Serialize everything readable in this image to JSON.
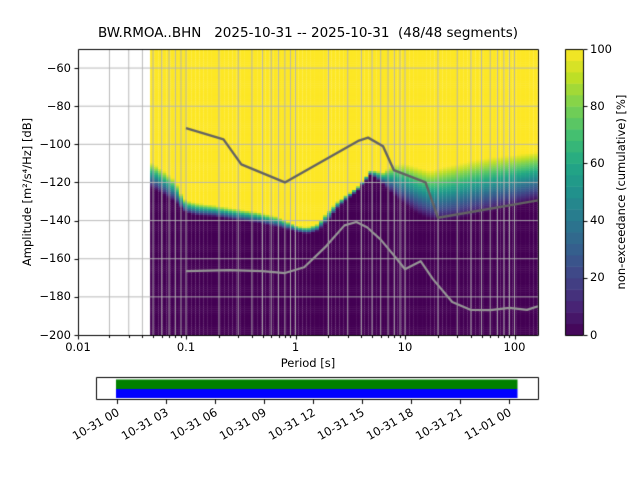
{
  "header": {
    "title": "BW.RMOA..BHN   2025-10-31 -- 2025-10-31  (48/48 segments)",
    "station_code": "BW.RMOA..BHN",
    "date_range": "2025-10-31 -- 2025-10-31",
    "segments": "48/48 segments"
  },
  "axes": {
    "xlabel": "Period [s]",
    "ylabel": "Amplitude [m²/s⁴/Hz] [dB]",
    "x_tick_labels": [
      "0.01",
      "0.1",
      "1",
      "10",
      "100"
    ],
    "x_tick_values": [
      0.01,
      0.1,
      1,
      10,
      100
    ],
    "y_tick_labels": [
      "−60",
      "−80",
      "−100",
      "−120",
      "−140",
      "−160",
      "−180",
      "−200"
    ],
    "y_tick_values": [
      -60,
      -80,
      -100,
      -120,
      -140,
      -160,
      -180,
      -200
    ]
  },
  "colorbar": {
    "label": "non-exceedance (cumulative) [%]",
    "tick_labels": [
      "0",
      "20",
      "40",
      "60",
      "80",
      "100"
    ],
    "tick_values": [
      0,
      20,
      40,
      60,
      80,
      100
    ],
    "steps": 25
  },
  "timeline": {
    "tick_labels": [
      "10-31 00",
      "10-31 03",
      "10-31 06",
      "10-31 09",
      "10-31 12",
      "10-31 15",
      "10-31 18",
      "10-31 21",
      "11-01 00"
    ],
    "coverage_top_color": "#008000",
    "coverage_bottom_color": "#0000ff"
  },
  "colors": {
    "grid": "#b2b2b2",
    "spine": "#000000",
    "high_noise_model_line": "#636363",
    "low_noise_model_line": "#969696",
    "no_data_background": "#ffffff",
    "viridis_stops": [
      "#440154",
      "#482475",
      "#414487",
      "#355f8d",
      "#2a788e",
      "#21918c",
      "#22a884",
      "#44bf70",
      "#7ad151",
      "#bddf26",
      "#fde725"
    ]
  },
  "chart_data": {
    "type": "heatmap",
    "subtype": "ppsd-cumulative",
    "title": "BW.RMOA..BHN   2025-10-31 -- 2025-10-31  (48/48 segments)",
    "xlabel": "Period [s]",
    "ylabel": "Amplitude [m²/s⁴/Hz] [dB]",
    "x_scale": "log",
    "x_range": [
      0.01,
      164
    ],
    "ylim": [
      -200,
      -50
    ],
    "colorbar_label": "non-exceedance (cumulative) [%]",
    "colorbar_range": [
      0,
      100
    ],
    "cmap": "viridis",
    "grid": true,
    "band": {
      "comment": "per period: PSD distribution span; max_db = level where cumulative reaches 100% (yellow above), min_db = level where it is 0% (dark below)",
      "periods_s": [
        0.047,
        0.055,
        0.065,
        0.08,
        0.088,
        0.1,
        0.13,
        0.18,
        0.3,
        0.45,
        0.69,
        1.05,
        1.28,
        1.6,
        1.95,
        2.4,
        3.0,
        3.7,
        4.9,
        6.3,
        8.0,
        10.0,
        13.0,
        17.0,
        22.0,
        30.0,
        45.0,
        70.0,
        100.0,
        140.0,
        164.0
      ],
      "max_db": [
        -109.0,
        -111.5,
        -114.5,
        -119.0,
        -125.0,
        -129.5,
        -131.0,
        -132.0,
        -134.0,
        -135.5,
        -138.0,
        -143.0,
        -143.5,
        -141.8,
        -135.5,
        -130.3,
        -126.1,
        -122.4,
        -113.5,
        -114.5,
        -110.5,
        -110.0,
        -112.0,
        -114.0,
        -112.0,
        -110.4,
        -108.0,
        -106.5,
        -105.5,
        -104.5,
        -104.0
      ],
      "min_db": [
        -122.5,
        -124.5,
        -127.0,
        -130.5,
        -133.0,
        -136.0,
        -137.5,
        -138.0,
        -140.0,
        -141.3,
        -143.5,
        -146.0,
        -147.0,
        -145.5,
        -140.8,
        -133.9,
        -128.7,
        -124.5,
        -116.1,
        -121.0,
        -127.0,
        -131.5,
        -136.5,
        -139.5,
        -140.5,
        -139.5,
        -137.0,
        -134.5,
        -132.5,
        -130.5,
        -129.5
      ]
    },
    "noise_models": {
      "high": {
        "name": "high-noise-model",
        "points": [
          [
            0.1,
            -91.5
          ],
          [
            0.22,
            -97.4
          ],
          [
            0.32,
            -110.5
          ],
          [
            0.8,
            -120.0
          ],
          [
            3.8,
            -98.0
          ],
          [
            4.6,
            -96.5
          ],
          [
            6.3,
            -101.0
          ],
          [
            7.9,
            -113.5
          ],
          [
            15.4,
            -120.0
          ],
          [
            20.0,
            -138.5
          ],
          [
            164.0,
            -129.4
          ]
        ]
      },
      "low": {
        "name": "low-noise-model",
        "points": [
          [
            0.1,
            -166.5
          ],
          [
            0.25,
            -166.0
          ],
          [
            0.5,
            -166.5
          ],
          [
            0.8,
            -167.5
          ],
          [
            1.2,
            -164.5
          ],
          [
            1.9,
            -153.5
          ],
          [
            2.8,
            -142.5
          ],
          [
            3.6,
            -140.7
          ],
          [
            4.5,
            -143.5
          ],
          [
            6.0,
            -150.0
          ],
          [
            8.4,
            -160.0
          ],
          [
            10.0,
            -165.5
          ],
          [
            13.9,
            -161.3
          ],
          [
            18.0,
            -170.7
          ],
          [
            27.0,
            -182.7
          ],
          [
            40.0,
            -186.9
          ],
          [
            60.0,
            -187.0
          ],
          [
            90.0,
            -185.8
          ],
          [
            130.0,
            -186.8
          ],
          [
            164.0,
            -184.9
          ]
        ]
      }
    }
  }
}
